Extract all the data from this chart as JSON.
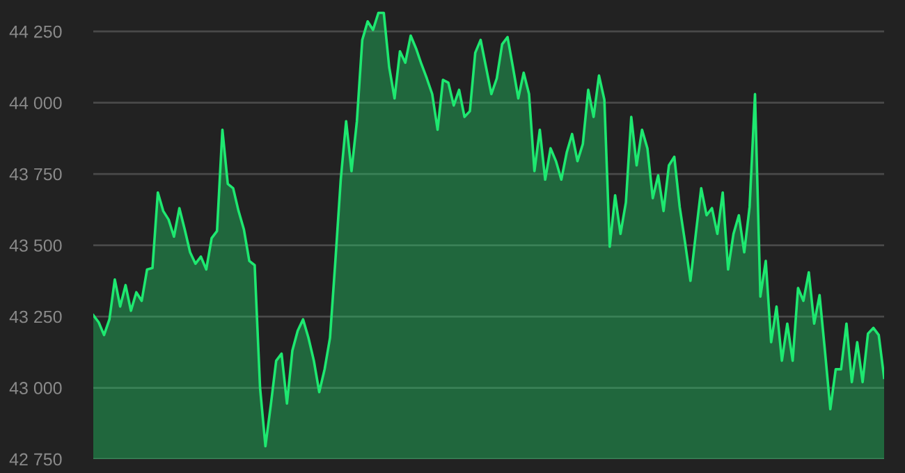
{
  "chart_data": {
    "type": "area",
    "categories": [
      null,
      null,
      null,
      null,
      null,
      null,
      null,
      null,
      null,
      null,
      null,
      null,
      null,
      null,
      null,
      null,
      null,
      null,
      null,
      null,
      null,
      null,
      null,
      null,
      null,
      null,
      null,
      null,
      null,
      null,
      null,
      null,
      null,
      null,
      null,
      null,
      null,
      null,
      null,
      null,
      null,
      null,
      null,
      null,
      null,
      null,
      null,
      null,
      null,
      null,
      null,
      null,
      null,
      null,
      null,
      null,
      null,
      null,
      null,
      null,
      null,
      null,
      null,
      null,
      null,
      null,
      null,
      null,
      null,
      null,
      null,
      null,
      null,
      null,
      null,
      null,
      null,
      null,
      null,
      null,
      null,
      null,
      null,
      null,
      null,
      null,
      null,
      null,
      null,
      null,
      null,
      null,
      null,
      null,
      null,
      null,
      null,
      null,
      null,
      null,
      null,
      null,
      null,
      null,
      null,
      null,
      null,
      null,
      null,
      null,
      null,
      null,
      null,
      null,
      null,
      null,
      null,
      null,
      null,
      null,
      null,
      null,
      null,
      null,
      null,
      null,
      null,
      null,
      null,
      null,
      null,
      null,
      null,
      null,
      null,
      null,
      null,
      null,
      null,
      null,
      null,
      null,
      null,
      null,
      null,
      null,
      null,
      null
    ],
    "series": [
      {
        "color": "#1ee870",
        "values": [
          43255,
          43230,
          43185,
          43240,
          43380,
          43285,
          43360,
          43270,
          43335,
          43305,
          43415,
          43420,
          43685,
          43620,
          43590,
          43530,
          43630,
          43555,
          43475,
          43435,
          43460,
          43415,
          43525,
          43550,
          43905,
          43715,
          43700,
          43620,
          43555,
          43445,
          43430,
          43000,
          42795,
          42940,
          43095,
          43120,
          42945,
          43130,
          43200,
          43240,
          43175,
          43095,
          42985,
          43065,
          43175,
          43445,
          43730,
          43935,
          43760,
          43935,
          44220,
          44285,
          44255,
          44315,
          44315,
          44125,
          44015,
          44180,
          44140,
          44235,
          44190,
          44135,
          44085,
          44030,
          43905,
          44080,
          44070,
          43990,
          44045,
          43950,
          43970,
          44175,
          44220,
          44125,
          44030,
          44085,
          44205,
          44230,
          44125,
          44015,
          44105,
          44030,
          43760,
          43905,
          43730,
          43840,
          43795,
          43730,
          43825,
          43890,
          43795,
          43855,
          44045,
          43950,
          44095,
          44010,
          43495,
          43675,
          43540,
          43650,
          43950,
          43780,
          43905,
          43840,
          43665,
          43745,
          43620,
          43780,
          43810,
          43635,
          43510,
          43375,
          43540,
          43700,
          43605,
          43630,
          43540,
          43685,
          43415,
          43540,
          43605,
          43475,
          43635,
          44030,
          43320,
          43445,
          43160,
          43285,
          43095,
          43225,
          43095,
          43350,
          43305,
          43405,
          43225,
          43325,
          43130,
          42925,
          43065,
          43065,
          43225,
          43020,
          43160,
          43020,
          43190,
          43210,
          43185,
          43035
        ]
      }
    ],
    "ylim": [
      42750,
      44360
    ],
    "yticks": [
      {
        "value": 42750,
        "label": "42 750"
      },
      {
        "value": 43000,
        "label": "43 000"
      },
      {
        "value": 43250,
        "label": "43 250"
      },
      {
        "value": 43500,
        "label": "43 500"
      },
      {
        "value": 43750,
        "label": "43 750"
      },
      {
        "value": 44000,
        "label": "44 000"
      },
      {
        "value": 44250,
        "label": "44 250"
      }
    ],
    "grid": "y",
    "tick_labels": "y",
    "legend": false
  }
}
